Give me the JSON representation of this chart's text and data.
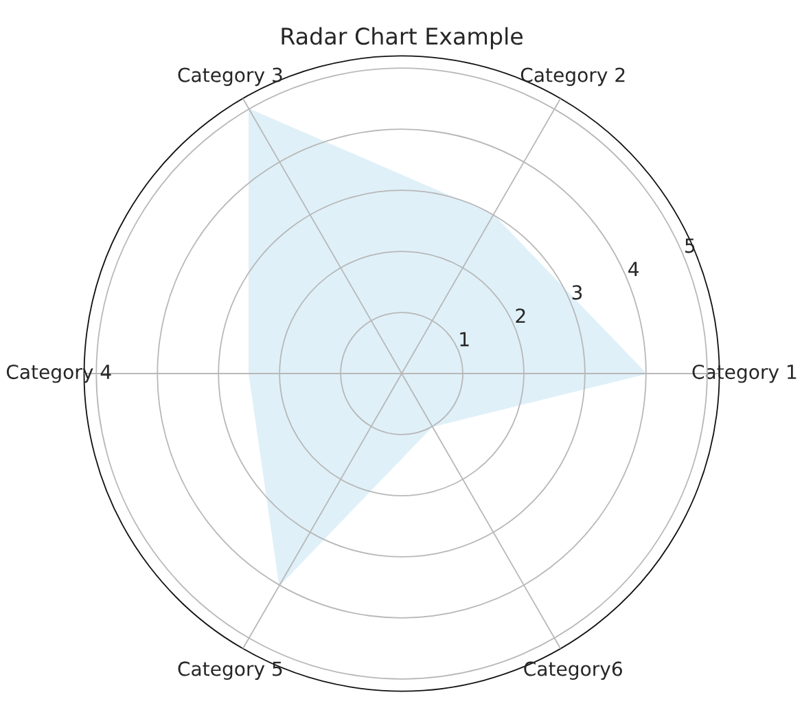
{
  "chart_data": {
    "type": "radar",
    "title": "Radar Chart Example",
    "categories": [
      "Category 2",
      "Category 1",
      "Category6",
      "Category 5",
      "Category 4",
      "Category 3"
    ],
    "series": [
      {
        "color": "#dff0f8",
        "values": [
          3,
          4,
          1,
          4,
          2.5,
          5
        ]
      }
    ],
    "ylim": [
      0,
      5.2
    ],
    "yticks": [
      1,
      2,
      3,
      4,
      5
    ],
    "grid": true
  }
}
